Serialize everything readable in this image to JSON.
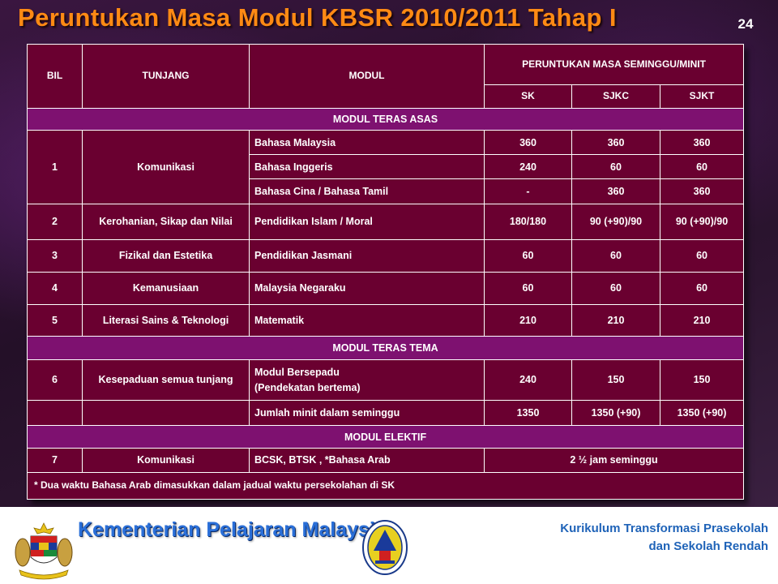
{
  "slide": {
    "title": "Peruntukan Masa Modul KBSR 2010/2011 Tahap I",
    "page_number": "24"
  },
  "table": {
    "headers": {
      "bil": "BIL",
      "tunjang": "TUNJANG",
      "modul": "MODUL",
      "peruntukan": "PERUNTUKAN MASA SEMINGGU/MINIT",
      "sk": "SK",
      "sjkc": "SJKC",
      "sjkt": "SJKT"
    },
    "sections": {
      "teras_asas": "MODUL TERAS ASAS",
      "teras_tema": "MODUL TERAS TEMA",
      "elektif": "MODUL ELEKTIF"
    },
    "rows": [
      {
        "bil": "1",
        "tunjang": "Komunikasi",
        "modul": "Bahasa Malaysia",
        "sk": "360",
        "sjkc": "360",
        "sjkt": "360"
      },
      {
        "modul": "Bahasa Inggeris",
        "sk": "240",
        "sjkc": "60",
        "sjkt": "60"
      },
      {
        "modul": "Bahasa Cina / Bahasa Tamil",
        "sk": "-",
        "sjkc": "360",
        "sjkt": "360"
      },
      {
        "bil": "2",
        "tunjang": "Kerohanian, Sikap dan Nilai",
        "modul": "Pendidikan Islam /  Moral",
        "sk": "180/180",
        "sjkc": "90 (+90)/90",
        "sjkt": "90 (+90)/90"
      },
      {
        "bil": "3",
        "tunjang": "Fizikal dan Estetika",
        "modul": "Pendidikan Jasmani",
        "sk": "60",
        "sjkc": "60",
        "sjkt": "60"
      },
      {
        "bil": "4",
        "tunjang": "Kemanusiaan",
        "modul": "Malaysia Negaraku",
        "sk": "60",
        "sjkc": "60",
        "sjkt": "60"
      },
      {
        "bil": "5",
        "tunjang": "Literasi Sains & Teknologi",
        "modul": "Matematik",
        "sk": "210",
        "sjkc": "210",
        "sjkt": "210"
      },
      {
        "bil": "6",
        "tunjang": "Kesepaduan semua tunjang",
        "modul_line1": "Modul Bersepadu",
        "modul_line2": "(Pendekatan bertema)",
        "sk": "240",
        "sjkc": "150",
        "sjkt": "150"
      },
      {
        "modul": "Jumlah minit dalam seminggu",
        "sk": "1350",
        "sjkc": "1350 (+90)",
        "sjkt": "1350 (+90)"
      },
      {
        "bil": "7",
        "tunjang": "Komunikasi",
        "modul": "BCSK, BTSK , *Bahasa Arab",
        "allocation": "2 ½  jam seminggu"
      }
    ],
    "footnote": "* Dua waktu Bahasa Arab dimasukkan dalam jadual waktu persekolahan di SK"
  },
  "footer": {
    "ministry": "Kementerian Pelajaran Malaysia",
    "curriculum_line1": "Kurikulum  Transformasi Prasekolah",
    "curriculum_line2": "dan Sekolah Rendah"
  },
  "colors": {
    "title": "#ff8a14",
    "cell_background": "#6a0030",
    "section_background": "#7e1170",
    "ministry_text": "#2a6fd8",
    "curriculum_text": "#1f63b8"
  },
  "icons": {
    "left_logo": "malaysia-coat-of-arms-icon",
    "center_logo": "ministry-emblem-icon"
  }
}
